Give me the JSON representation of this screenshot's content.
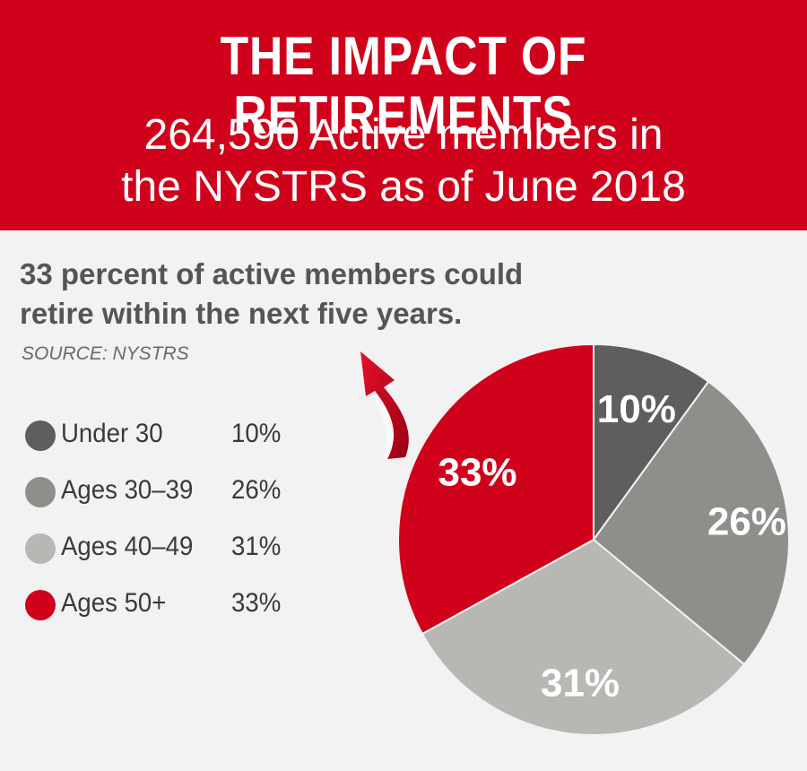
{
  "header": {
    "title": "THE IMPACT OF RETIREMENTS",
    "subtitle_line1": "264,590 Active members in",
    "subtitle_line2": "the NYSTRS as of June 2018"
  },
  "headline_line1": "33 percent of active members could",
  "headline_line2": "retire within the next five years.",
  "source": "SOURCE: NYSTRS",
  "colors": {
    "header_bg": "#d0021b",
    "background": "#f2f2f2",
    "accent_red": "#d0021b"
  },
  "chart_data": {
    "type": "pie",
    "title": "",
    "legend_position": "left",
    "slices": [
      {
        "label": "Under 30",
        "value": 10,
        "display": "10%",
        "color": "#5e5e5e"
      },
      {
        "label": "Ages 30–39",
        "value": 26,
        "display": "26%",
        "color": "#8e8f8b"
      },
      {
        "label": "Ages 40–49",
        "value": 31,
        "display": "31%",
        "color": "#b7b8b4"
      },
      {
        "label": "Ages 50+",
        "value": 33,
        "display": "33%",
        "color": "#d0021b"
      }
    ]
  }
}
